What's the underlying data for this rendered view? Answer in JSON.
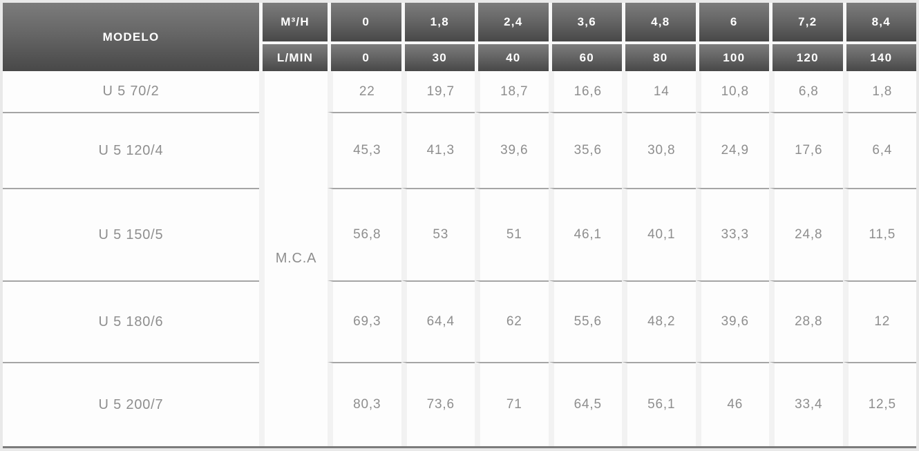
{
  "table": {
    "header": {
      "model_column_label": "MODELO",
      "flow_unit_top": "M³/H",
      "flow_unit_bottom": "L/MIN",
      "flow_m3h": [
        "0",
        "1,8",
        "2,4",
        "3,6",
        "4,8",
        "6",
        "7,2",
        "8,4"
      ],
      "flow_lmin": [
        "0",
        "30",
        "40",
        "60",
        "80",
        "100",
        "120",
        "140"
      ]
    },
    "unit_label": "M.C.A",
    "rows": [
      {
        "model": "U 5 70/2",
        "head_mca": [
          "22",
          "19,7",
          "18,7",
          "16,6",
          "14",
          "10,8",
          "6,8",
          "1,8"
        ]
      },
      {
        "model": "U 5 120/4",
        "head_mca": [
          "45,3",
          "41,3",
          "39,6",
          "35,6",
          "30,8",
          "24,9",
          "17,6",
          "6,4"
        ]
      },
      {
        "model": "U 5 150/5",
        "head_mca": [
          "56,8",
          "53",
          "51",
          "46,1",
          "40,1",
          "33,3",
          "24,8",
          "11,5"
        ]
      },
      {
        "model": "U 5 180/6",
        "head_mca": [
          "69,3",
          "64,4",
          "62",
          "55,6",
          "48,2",
          "39,6",
          "28,8",
          "12"
        ]
      },
      {
        "model": "U 5 200/7",
        "head_mca": [
          "80,3",
          "73,6",
          "71",
          "64,5",
          "56,1",
          "46",
          "33,4",
          "12,5"
        ]
      }
    ]
  },
  "colors": {
    "header_gradient_top": "#7c7c7c",
    "header_gradient_bottom": "#484848",
    "header_text": "#ffffff",
    "body_text": "#8e8e8e",
    "row_line": "#a5a5a5",
    "bottom_line": "#7b7b7b",
    "cell_background": "#fdfdfd",
    "column_gap": "#f2f2f2",
    "page_background": "#e9e9e9"
  }
}
